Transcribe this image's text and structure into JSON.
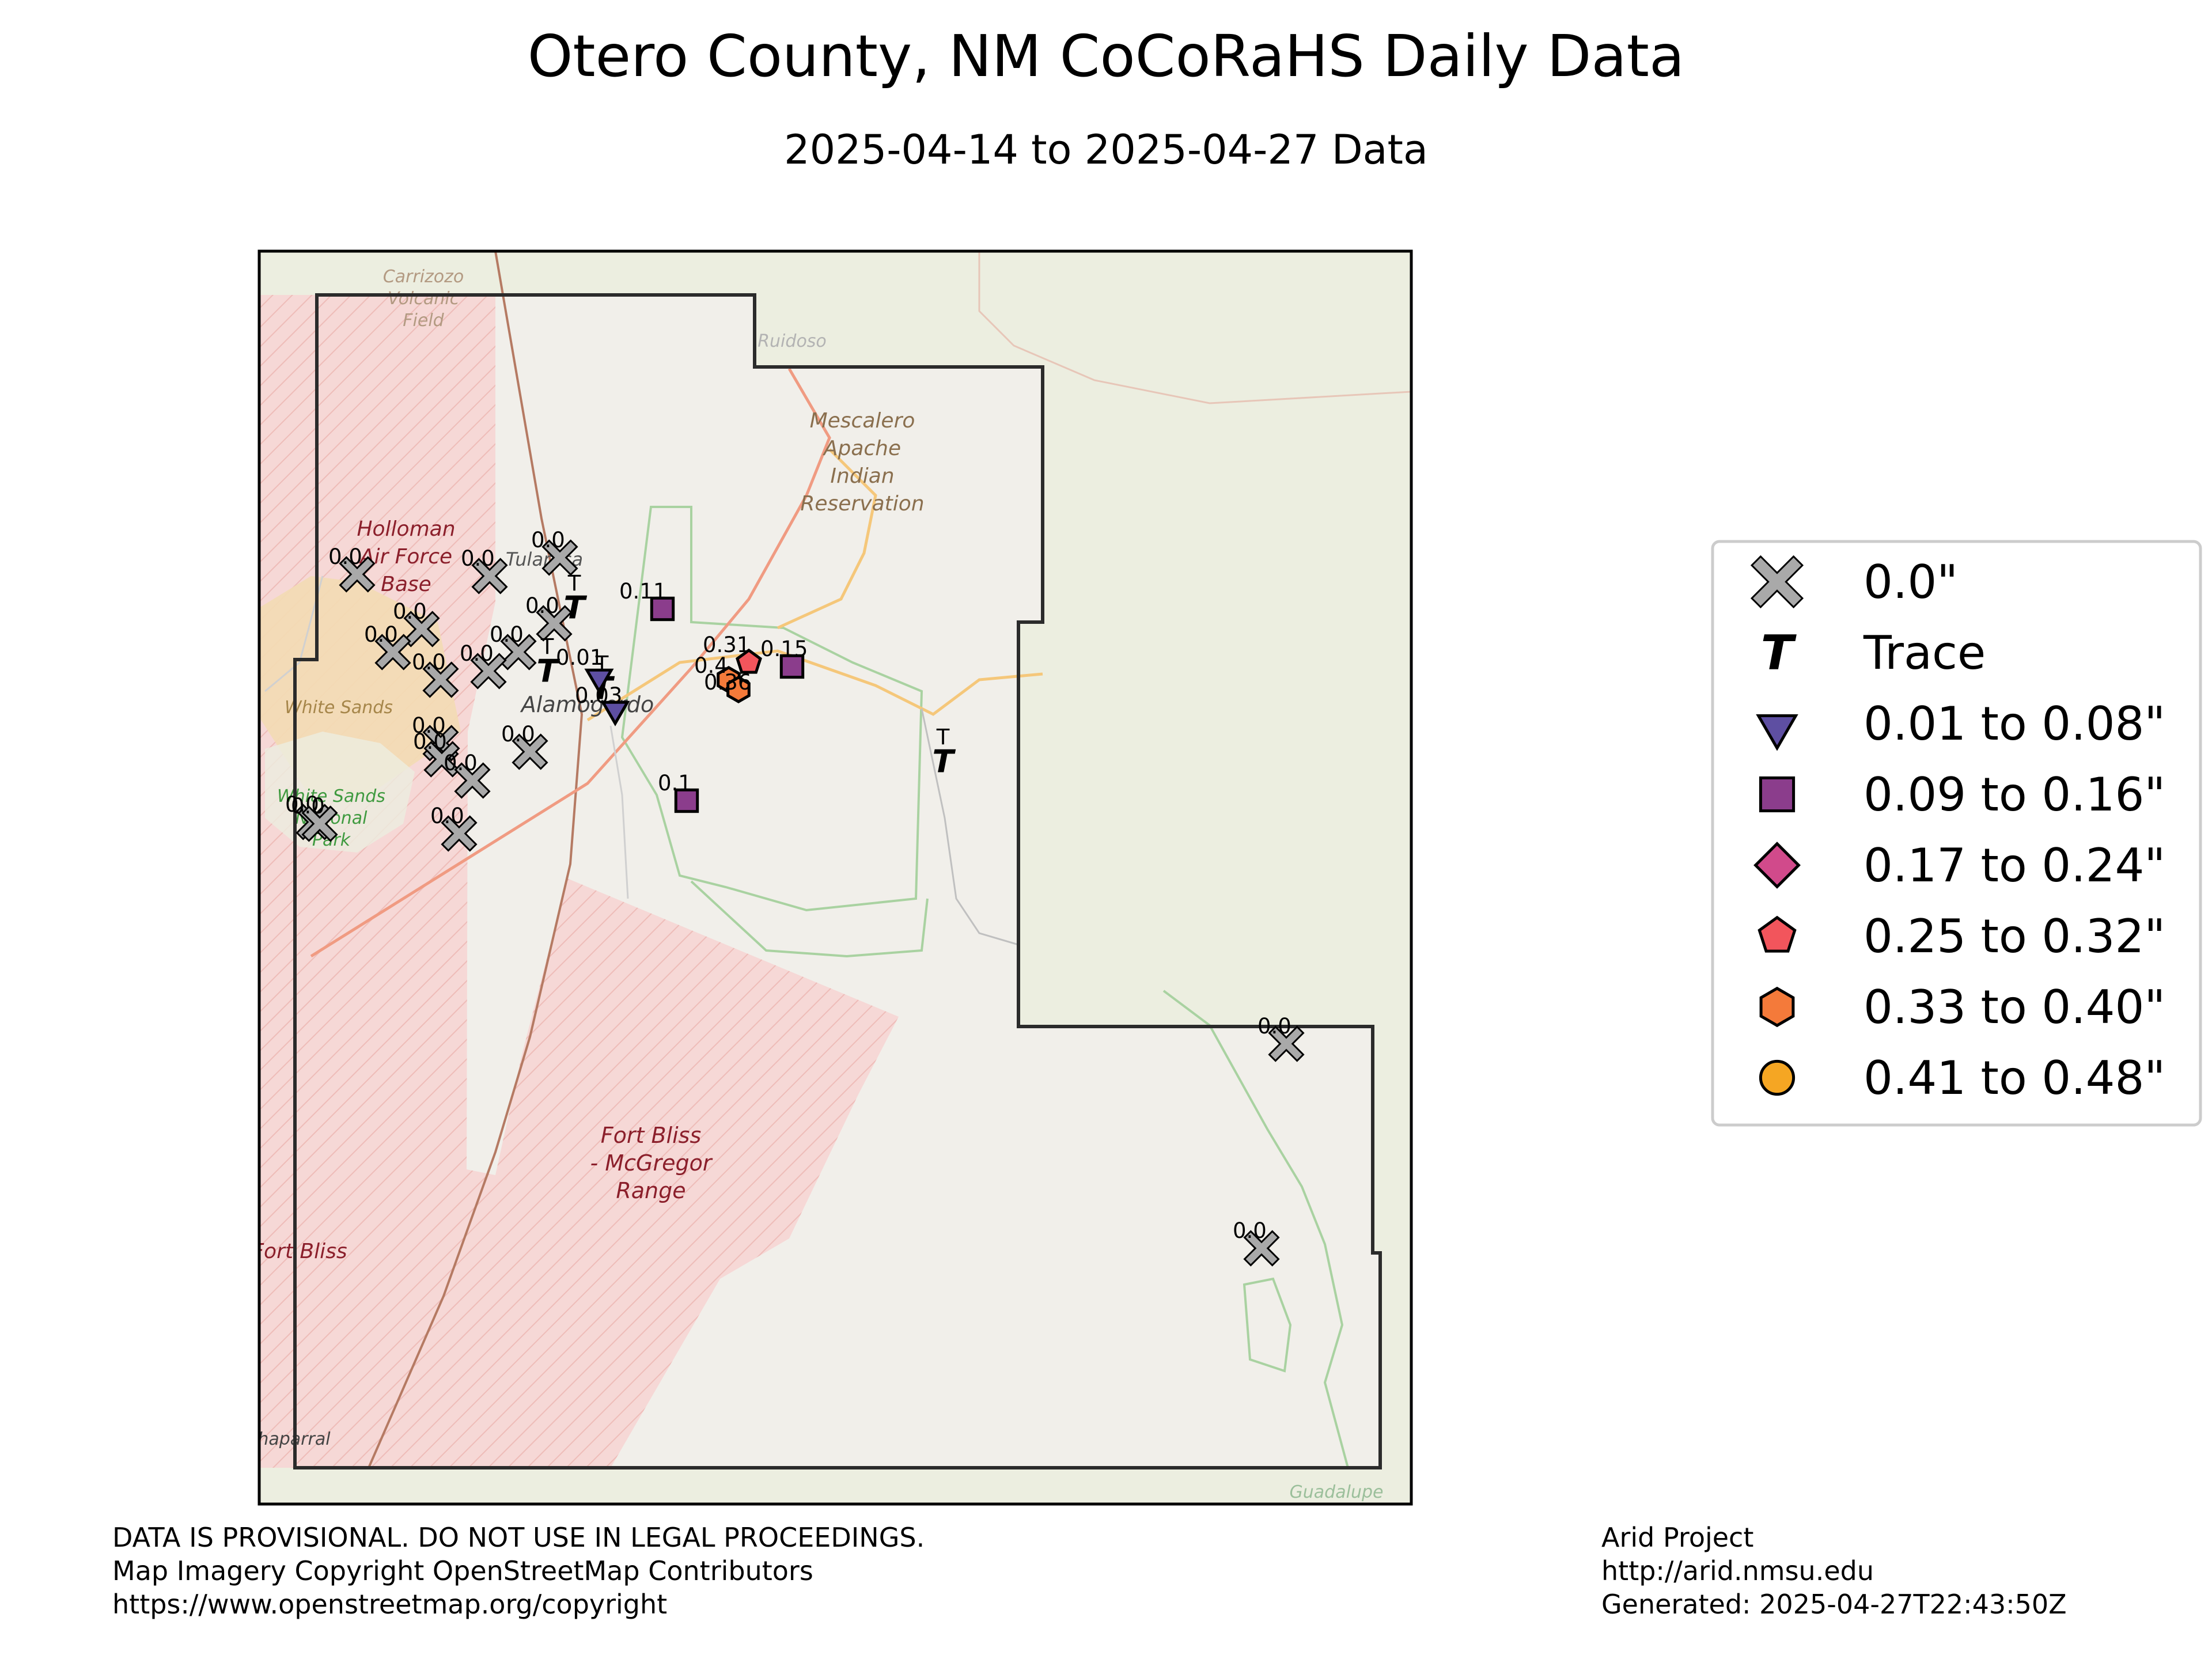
{
  "title": "Otero County, NM CoCoRaHS Daily Data",
  "subtitle": "2025-04-14 to 2025-04-27 Data",
  "map": {
    "place_labels": [
      "Carrizozo Volcanic Field",
      "Ruidoso",
      "Mescalero Apache Indian Reservation",
      "Holloman Air Force Base",
      "Tularosa",
      "Alamogordo",
      "White Sands",
      "White Sands National Park",
      "Fort Bliss - McGregor Range",
      "Fort Bliss",
      "Chaparral",
      "Guadalupe"
    ],
    "stations": [
      {
        "label": "0.0",
        "category": "zero"
      },
      {
        "label": "0.0",
        "category": "zero"
      },
      {
        "label": "0.0",
        "category": "zero"
      },
      {
        "label": "0.0",
        "category": "zero"
      },
      {
        "label": "0.0",
        "category": "zero"
      },
      {
        "label": "0.0",
        "category": "zero"
      },
      {
        "label": "0.0",
        "category": "zero"
      },
      {
        "label": "0.0",
        "category": "zero"
      },
      {
        "label": "0.0",
        "category": "zero"
      },
      {
        "label": "0.0",
        "category": "zero"
      },
      {
        "label": "0.0",
        "category": "zero"
      },
      {
        "label": "0.0",
        "category": "zero"
      },
      {
        "label": "0.0",
        "category": "zero"
      },
      {
        "label": "0.0",
        "category": "zero"
      },
      {
        "label": "0.0",
        "category": "zero"
      },
      {
        "label": "0.0",
        "category": "zero"
      },
      {
        "label": "0.0",
        "category": "zero"
      },
      {
        "label": "0.0",
        "category": "zero"
      },
      {
        "label": "T",
        "category": "trace"
      },
      {
        "label": "T",
        "category": "trace"
      },
      {
        "label": "T",
        "category": "trace"
      },
      {
        "label": "T",
        "category": "trace"
      },
      {
        "label": "0.01",
        "category": "0.01-0.08"
      },
      {
        "label": "0.03",
        "category": "0.01-0.08"
      },
      {
        "label": "0.11",
        "category": "0.09-0.16"
      },
      {
        "label": "0.15",
        "category": "0.09-0.16"
      },
      {
        "label": "0.1",
        "category": "0.09-0.16"
      },
      {
        "label": "0.31",
        "category": "0.25-0.32"
      },
      {
        "label": "0.4",
        "category": "0.33-0.40"
      },
      {
        "label": "0.36",
        "category": "0.33-0.40"
      }
    ]
  },
  "legend": {
    "items": [
      {
        "label": "0.0\"",
        "marker": "x-icon",
        "color": "#a9a9a9"
      },
      {
        "label": "Trace",
        "marker": "t-icon",
        "color": "#000000"
      },
      {
        "label": "0.01 to 0.08\"",
        "marker": "triangle-down-icon",
        "color": "#5e4fa2"
      },
      {
        "label": "0.09 to 0.16\"",
        "marker": "square-icon",
        "color": "#8b3d8c"
      },
      {
        "label": "0.17 to 0.24\"",
        "marker": "diamond-icon",
        "color": "#d14a8b"
      },
      {
        "label": "0.25 to 0.32\"",
        "marker": "pentagon-icon",
        "color": "#f2555c"
      },
      {
        "label": "0.33 to 0.40\"",
        "marker": "hexagon-icon",
        "color": "#f47a3a"
      },
      {
        "label": "0.41 to 0.48\"",
        "marker": "circle-icon",
        "color": "#f5a623"
      }
    ]
  },
  "footer": {
    "left": [
      "DATA IS PROVISIONAL. DO NOT USE IN LEGAL PROCEEDINGS.",
      "Map Imagery Copyright OpenStreetMap Contributors",
      "https://www.openstreetmap.org/copyright"
    ],
    "right": [
      "Arid Project",
      "http://arid.nmsu.edu",
      "Generated: 2025-04-27T22:43:50Z"
    ]
  }
}
